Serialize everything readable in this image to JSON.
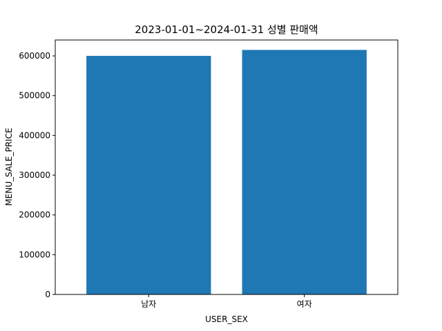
{
  "chart_data": {
    "type": "bar",
    "title": "2023-01-01~2024-01-31 성별 판매액",
    "xlabel": "USER_SEX",
    "ylabel": "MENU_SALE_PRICE",
    "categories": [
      "남자",
      "여자"
    ],
    "values": [
      600000,
      615000
    ],
    "ylim": [
      0,
      640000
    ],
    "yticks": [
      0,
      100000,
      200000,
      300000,
      400000,
      500000,
      600000
    ],
    "ytick_labels": [
      "0",
      "100000",
      "200000",
      "300000",
      "400000",
      "500000",
      "600000"
    ],
    "bar_color": "#1f77b4",
    "grid": false,
    "legend": false
  }
}
